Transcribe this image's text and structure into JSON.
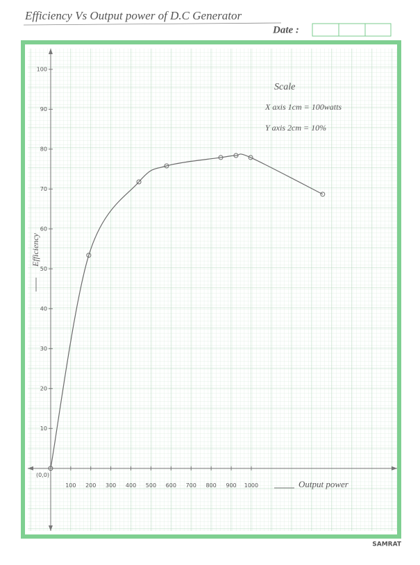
{
  "chart_data": {
    "type": "line",
    "title": "Efficiency Vs Output power of D.C Generator",
    "date_label": "Date :",
    "scale_title": "Scale",
    "scale_x": "X axis 1cm = 100watts",
    "scale_y": "Y axis 2cm = 10%",
    "x_label": "Output power",
    "y_label": "Efficiency",
    "origin_label": "(0,0)",
    "brand": "SAMRAT",
    "series": [
      {
        "color": "#6a6a6a",
        "x": [
          0,
          190,
          440,
          578,
          848,
          924,
          997,
          1356
        ],
        "values": [
          0,
          53.4,
          71.8,
          75.8,
          77.9,
          78.4,
          77.9,
          68.7
        ]
      }
    ],
    "xlim": [
      -114,
      1727
    ],
    "ylim": [
      -15.7,
      105.2
    ],
    "xticks": [
      100,
      200,
      300,
      400,
      500,
      600,
      700,
      800,
      900,
      1000
    ],
    "yticks": [
      10,
      20,
      30,
      40,
      50,
      60,
      70,
      80,
      90,
      100
    ]
  }
}
